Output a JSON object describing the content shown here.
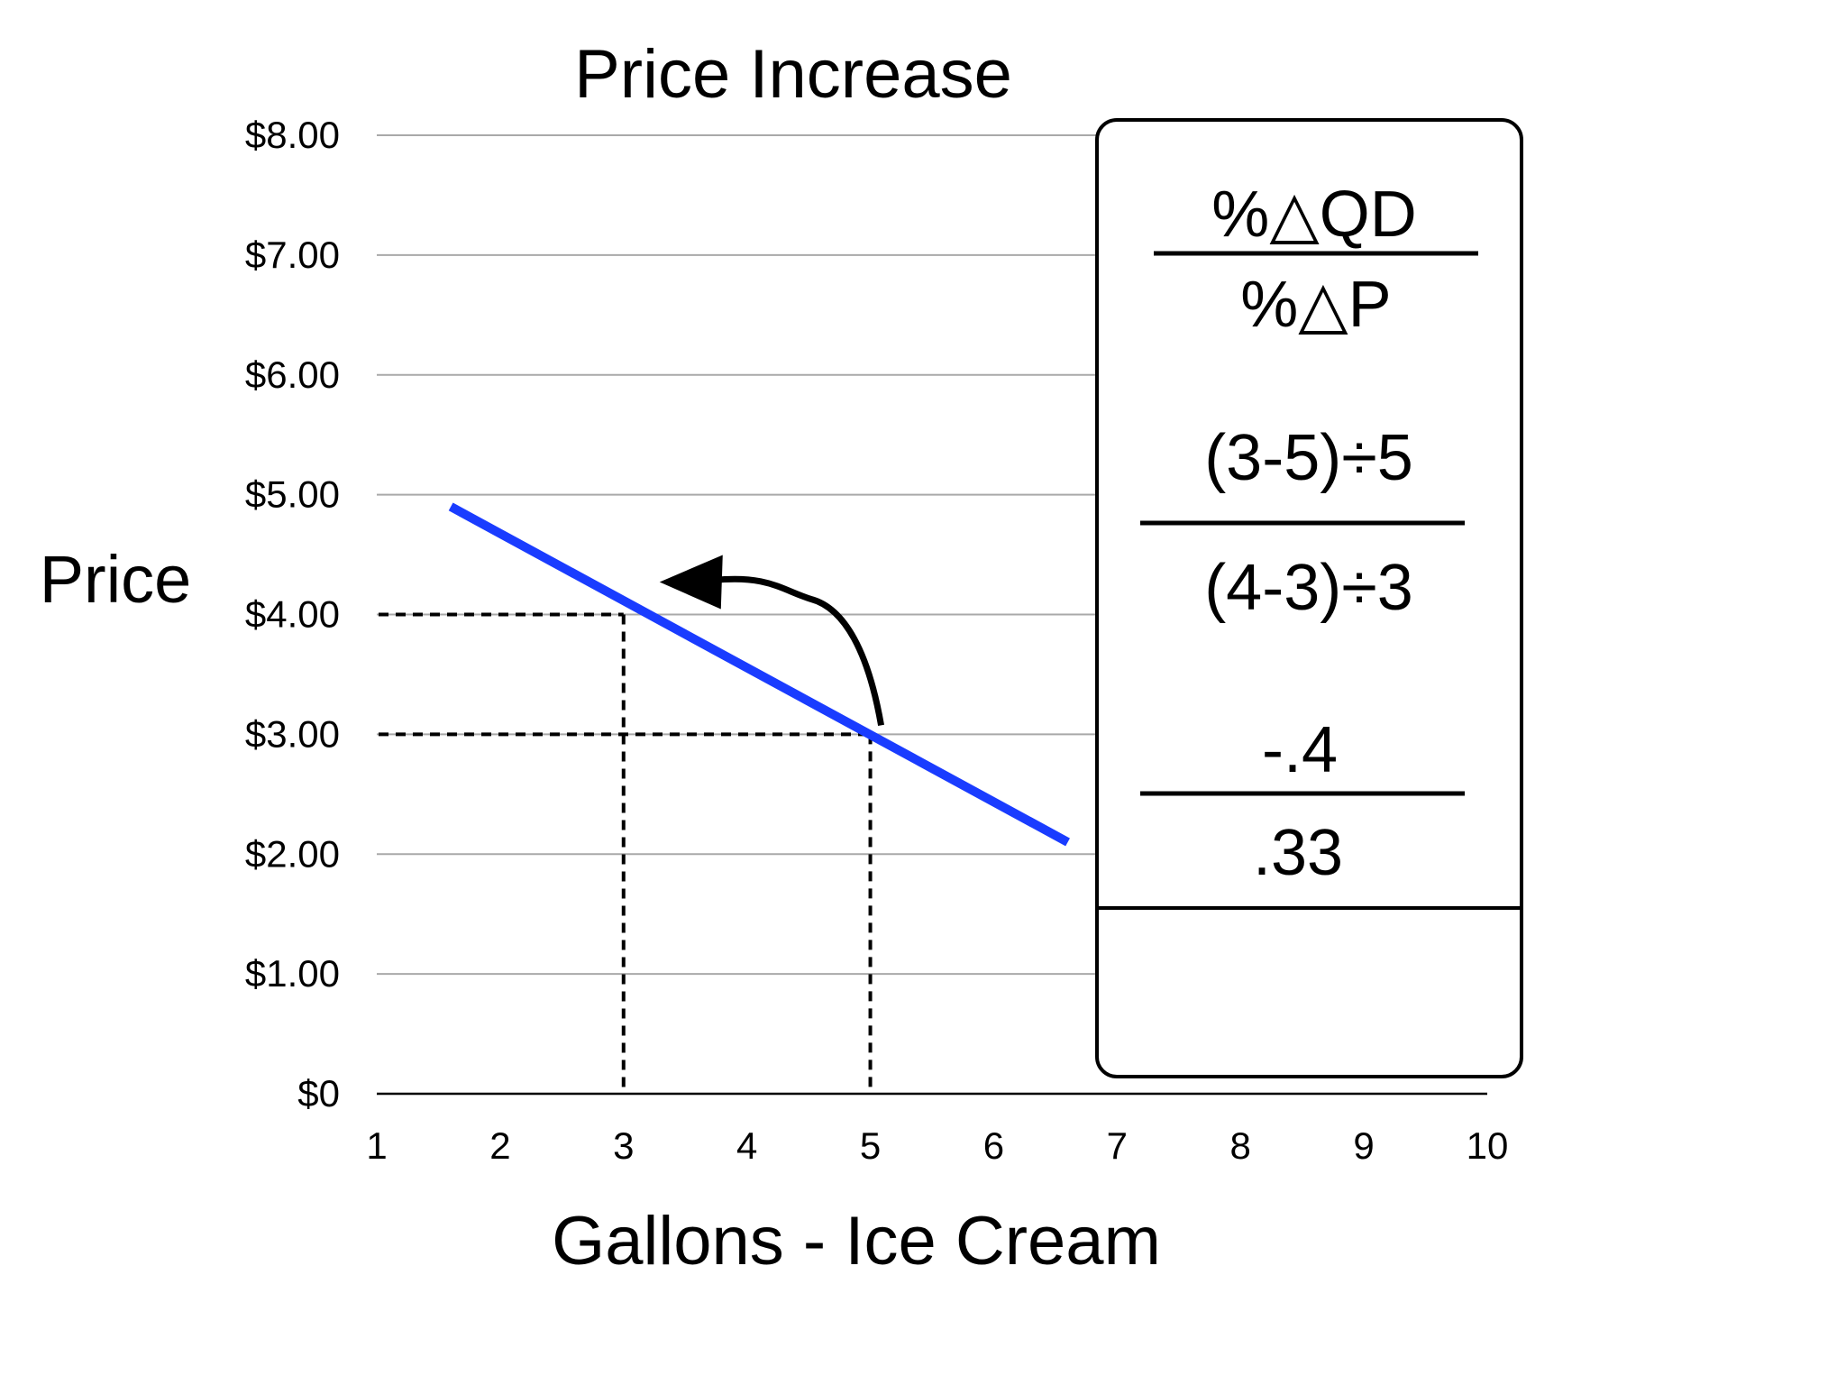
{
  "chart_data": {
    "type": "line",
    "title": "Price Increase",
    "xlabel": "Gallons - Ice Cream",
    "ylabel": "Price",
    "x_ticks": [
      "1",
      "2",
      "3",
      "4",
      "5",
      "6",
      "7",
      "8",
      "9",
      "10"
    ],
    "x_range": [
      1,
      10
    ],
    "y_ticks": [
      {
        "value": 0,
        "label": "$0"
      },
      {
        "value": 1,
        "label": "$1.00"
      },
      {
        "value": 2,
        "label": "$2.00"
      },
      {
        "value": 3,
        "label": "$3.00"
      },
      {
        "value": 4,
        "label": "$4.00"
      },
      {
        "value": 5,
        "label": "$5.00"
      },
      {
        "value": 6,
        "label": "$6.00"
      },
      {
        "value": 7,
        "label": "$7.00"
      },
      {
        "value": 8,
        "label": "$8.00"
      }
    ],
    "ylim": [
      0,
      8
    ],
    "grid": "horizontal",
    "series": [
      {
        "color": "#1a3cff",
        "points": [
          [
            1.6,
            4.9
          ],
          [
            6.6,
            2.1
          ]
        ]
      }
    ],
    "reference_points": [
      {
        "x": 3,
        "y": 4
      },
      {
        "x": 5,
        "y": 3
      }
    ],
    "arrow": {
      "from": {
        "x": 5,
        "y": 3
      },
      "to": {
        "x": 3,
        "y": 4
      }
    },
    "formula_box": {
      "elasticity_numerator": "%△QD",
      "elasticity_denominator": "%△P",
      "calc_numerator": "(3-5)÷5",
      "calc_denominator": "(4-3)÷3",
      "result_numerator": "-.4",
      "result_denominator": ".33",
      "answer": ""
    }
  }
}
